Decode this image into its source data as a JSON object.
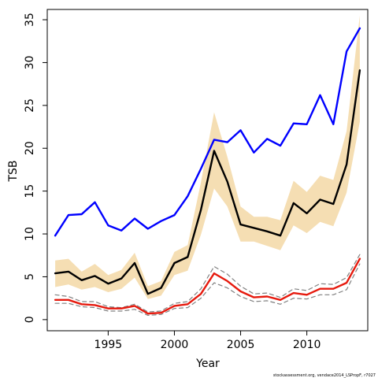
{
  "chart_data": {
    "type": "line",
    "xlabel": "Year",
    "ylabel": "TSB",
    "xlim": [
      1990.4,
      2014.6
    ],
    "ylim": [
      -1.3,
      36.2
    ],
    "x_ticks": [
      1995,
      2000,
      2005,
      2010
    ],
    "y_ticks": [
      0,
      5,
      10,
      15,
      20,
      25,
      30,
      35
    ],
    "grid": false,
    "legend": "none",
    "credit": "stockassessment.org, vendace2014_LSPropF, r7027",
    "x": [
      1991,
      1992,
      1993,
      1994,
      1995,
      1996,
      1997,
      1998,
      1999,
      2000,
      2001,
      2002,
      2003,
      2004,
      2005,
      2006,
      2007,
      2008,
      2009,
      2010,
      2011,
      2012,
      2013,
      2014
    ],
    "band": {
      "color": "#f5deb3",
      "lower": [
        3.8,
        4.1,
        3.5,
        3.8,
        3.2,
        3.6,
        4.9,
        2.4,
        2.8,
        5.2,
        5.7,
        9.9,
        15.3,
        13.2,
        9.1,
        9.1,
        8.6,
        8.1,
        11.0,
        10.1,
        11.4,
        10.9,
        14.8,
        23.1
      ],
      "upper": [
        6.9,
        7.1,
        5.6,
        6.5,
        5.2,
        5.8,
        7.8,
        3.9,
        4.5,
        7.9,
        8.7,
        16.0,
        24.2,
        19.0,
        13.2,
        12.0,
        12.0,
        11.6,
        16.2,
        14.9,
        16.8,
        16.3,
        22.0,
        35.5
      ]
    },
    "series": [
      {
        "color": "#0000ff",
        "width": 2.4,
        "values": [
          9.8,
          12.2,
          12.3,
          13.7,
          11.0,
          10.4,
          11.8,
          10.6,
          11.5,
          12.2,
          14.4,
          17.6,
          21.0,
          20.7,
          22.1,
          19.5,
          21.1,
          20.3,
          22.9,
          22.8,
          26.2,
          22.8,
          31.3,
          34.0
        ]
      },
      {
        "color": "#000000",
        "width": 2.4,
        "values": [
          5.4,
          5.6,
          4.6,
          5.1,
          4.2,
          4.8,
          6.6,
          3.0,
          3.7,
          6.6,
          7.3,
          12.8,
          19.7,
          16.1,
          11.1,
          10.7,
          10.3,
          9.8,
          13.6,
          12.4,
          14.0,
          13.5,
          18.1,
          29.1
        ]
      },
      {
        "color": "#808080",
        "width": 1.2,
        "dash": "5,4",
        "values": [
          2.9,
          2.7,
          2.1,
          2.1,
          1.5,
          1.4,
          1.8,
          0.9,
          1.0,
          1.9,
          2.1,
          3.6,
          6.2,
          5.3,
          3.9,
          3.0,
          3.1,
          2.6,
          3.6,
          3.4,
          4.2,
          4.1,
          4.9,
          7.6
        ]
      },
      {
        "color": "#808080",
        "width": 1.2,
        "dash": "5,4",
        "values": [
          1.9,
          1.9,
          1.5,
          1.4,
          1.0,
          1.0,
          1.2,
          0.5,
          0.6,
          1.3,
          1.4,
          2.5,
          4.3,
          3.7,
          2.7,
          2.1,
          2.2,
          1.8,
          2.5,
          2.4,
          2.9,
          2.9,
          3.5,
          6.5
        ]
      },
      {
        "color": "#e61a0e",
        "width": 2.4,
        "values": [
          2.3,
          2.3,
          1.8,
          1.7,
          1.3,
          1.3,
          1.6,
          0.7,
          0.8,
          1.6,
          1.8,
          3.0,
          5.4,
          4.5,
          3.3,
          2.6,
          2.7,
          2.3,
          3.1,
          2.9,
          3.6,
          3.6,
          4.3,
          7.1
        ]
      }
    ]
  }
}
